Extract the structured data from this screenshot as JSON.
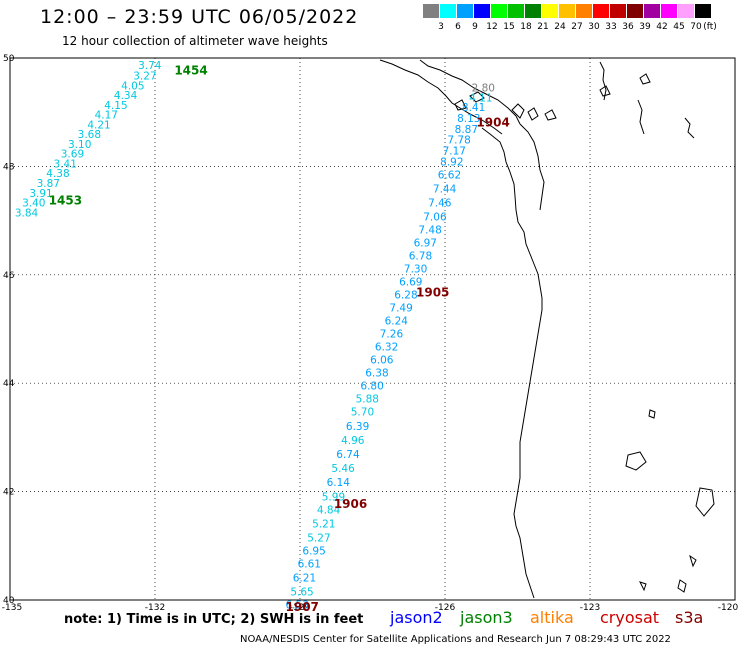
{
  "header": {
    "title": "12:00 – 23:59 UTC 06/05/2022",
    "subtitle": "12 hour collection of altimeter wave heights"
  },
  "legend": {
    "unit": "(ft)",
    "bins": [
      {
        "label": "3",
        "color": "#808080"
      },
      {
        "label": "6",
        "color": "#00ffff"
      },
      {
        "label": "9",
        "color": "#00a0ff"
      },
      {
        "label": "12",
        "color": "#0000ff"
      },
      {
        "label": "15",
        "color": "#00ff00"
      },
      {
        "label": "18",
        "color": "#00c000"
      },
      {
        "label": "21",
        "color": "#008000"
      },
      {
        "label": "24",
        "color": "#ffff00"
      },
      {
        "label": "27",
        "color": "#ffc000"
      },
      {
        "label": "30",
        "color": "#ff8000"
      },
      {
        "label": "33",
        "color": "#ff0000"
      },
      {
        "label": "36",
        "color": "#c00000"
      },
      {
        "label": "39",
        "color": "#800000"
      },
      {
        "label": "42",
        "color": "#a000a0"
      },
      {
        "label": "45",
        "color": "#ff00ff"
      },
      {
        "label": "70",
        "color": "#ffa0ff"
      },
      {
        "label": "",
        "color": "#000000"
      }
    ]
  },
  "axes": {
    "lon_ticks": [
      "-135",
      "-132",
      "-129",
      "-126",
      "-123",
      "-120"
    ],
    "lat_ticks": [
      "50",
      "48",
      "46",
      "44",
      "42",
      "40"
    ],
    "lon_range": [
      -135,
      -120
    ],
    "lat_range": [
      40,
      50
    ]
  },
  "tracks": [
    {
      "mission": "jason3",
      "time_labels": [
        {
          "text": "1454",
          "lon": -131.6,
          "lat": 49.7
        },
        {
          "text": "1453",
          "lon": -134.2,
          "lat": 47.3
        }
      ],
      "points": [
        {
          "lon": -132.35,
          "lat": 49.8,
          "swh": "3.74"
        },
        {
          "lon": -132.45,
          "lat": 49.6,
          "swh": "3.27"
        },
        {
          "lon": -132.7,
          "lat": 49.42,
          "swh": "4.05"
        },
        {
          "lon": -132.85,
          "lat": 49.24,
          "swh": "4.34"
        },
        {
          "lon": -133.05,
          "lat": 49.06,
          "swh": "4.15"
        },
        {
          "lon": -133.25,
          "lat": 48.88,
          "swh": "4.17"
        },
        {
          "lon": -133.4,
          "lat": 48.7,
          "swh": "4.21"
        },
        {
          "lon": -133.6,
          "lat": 48.52,
          "swh": "3.68"
        },
        {
          "lon": -133.8,
          "lat": 48.34,
          "swh": "3.10"
        },
        {
          "lon": -133.95,
          "lat": 48.16,
          "swh": "3.69"
        },
        {
          "lon": -134.1,
          "lat": 47.98,
          "swh": "3.41"
        },
        {
          "lon": -134.25,
          "lat": 47.8,
          "swh": "4.38"
        },
        {
          "lon": -134.45,
          "lat": 47.62,
          "swh": "3.87"
        },
        {
          "lon": -134.6,
          "lat": 47.44,
          "swh": "3.91"
        },
        {
          "lon": -134.75,
          "lat": 47.26,
          "swh": "3.40"
        },
        {
          "lon": -134.9,
          "lat": 47.08,
          "swh": "3.84"
        }
      ]
    },
    {
      "mission": "cryosat",
      "time_labels": [
        {
          "text": "1904",
          "lon": -125.35,
          "lat": 48.74
        },
        {
          "text": "1905",
          "lon": -126.6,
          "lat": 45.6
        },
        {
          "text": "1906",
          "lon": -128.3,
          "lat": 41.7
        },
        {
          "text": "1907",
          "lon": -129.3,
          "lat": 39.8
        }
      ],
      "points": [
        {
          "lon": -125.45,
          "lat": 49.38,
          "swh": "2.80"
        },
        {
          "lon": -125.5,
          "lat": 49.2,
          "swh": "4.11"
        },
        {
          "lon": -125.65,
          "lat": 49.02,
          "swh": "8.41"
        },
        {
          "lon": -125.75,
          "lat": 48.82,
          "swh": "8.13"
        },
        {
          "lon": -125.8,
          "lat": 48.62,
          "swh": "8.87"
        },
        {
          "lon": -125.95,
          "lat": 48.42,
          "swh": "7.78"
        },
        {
          "lon": -126.05,
          "lat": 48.22,
          "swh": "7.17"
        },
        {
          "lon": -126.1,
          "lat": 48.02,
          "swh": "8.92"
        },
        {
          "lon": -126.15,
          "lat": 47.78,
          "swh": "6.62"
        },
        {
          "lon": -126.25,
          "lat": 47.52,
          "swh": "7.44"
        },
        {
          "lon": -126.35,
          "lat": 47.26,
          "swh": "7.46"
        },
        {
          "lon": -126.45,
          "lat": 47.0,
          "swh": "7.06"
        },
        {
          "lon": -126.55,
          "lat": 46.76,
          "swh": "7.48"
        },
        {
          "lon": -126.65,
          "lat": 46.52,
          "swh": "6.97"
        },
        {
          "lon": -126.75,
          "lat": 46.28,
          "swh": "6.78"
        },
        {
          "lon": -126.85,
          "lat": 46.04,
          "swh": "7.30"
        },
        {
          "lon": -126.95,
          "lat": 45.8,
          "swh": "6.69"
        },
        {
          "lon": -127.05,
          "lat": 45.56,
          "swh": "6.28"
        },
        {
          "lon": -127.15,
          "lat": 45.32,
          "swh": "7.49"
        },
        {
          "lon": -127.25,
          "lat": 45.08,
          "swh": "6.24"
        },
        {
          "lon": -127.35,
          "lat": 44.84,
          "swh": "7.26"
        },
        {
          "lon": -127.45,
          "lat": 44.6,
          "swh": "6.32"
        },
        {
          "lon": -127.55,
          "lat": 44.36,
          "swh": "6.06"
        },
        {
          "lon": -127.65,
          "lat": 44.12,
          "swh": "6.38"
        },
        {
          "lon": -127.75,
          "lat": 43.88,
          "swh": "6.80"
        },
        {
          "lon": -127.85,
          "lat": 43.64,
          "swh": "5.88"
        },
        {
          "lon": -127.95,
          "lat": 43.4,
          "swh": "5.70"
        },
        {
          "lon": -128.05,
          "lat": 43.14,
          "swh": "6.39"
        },
        {
          "lon": -128.15,
          "lat": 42.88,
          "swh": "4.96"
        },
        {
          "lon": -128.25,
          "lat": 42.62,
          "swh": "6.74"
        },
        {
          "lon": -128.35,
          "lat": 42.36,
          "swh": "5.46"
        },
        {
          "lon": -128.45,
          "lat": 42.1,
          "swh": "6.14"
        },
        {
          "lon": -128.55,
          "lat": 41.84,
          "swh": "5.99"
        },
        {
          "lon": -128.65,
          "lat": 41.6,
          "swh": "4.84"
        },
        {
          "lon": -128.75,
          "lat": 41.34,
          "swh": "5.21"
        },
        {
          "lon": -128.85,
          "lat": 41.08,
          "swh": "5.27"
        },
        {
          "lon": -128.95,
          "lat": 40.84,
          "swh": "6.95"
        },
        {
          "lon": -129.05,
          "lat": 40.6,
          "swh": "6.61"
        },
        {
          "lon": -129.15,
          "lat": 40.34,
          "swh": "6.21"
        },
        {
          "lon": -129.2,
          "lat": 40.08,
          "swh": "5.65"
        },
        {
          "lon": -129.3,
          "lat": 39.84,
          "swh": "6.53"
        }
      ]
    }
  ],
  "footer": {
    "note": "note:  1) Time is in UTC;  2) SWH is in feet",
    "missions": [
      {
        "name": "jason2",
        "color": "#0000ff"
      },
      {
        "name": "jason3",
        "color": "#008000"
      },
      {
        "name": "altika",
        "color": "#ff8000"
      },
      {
        "name": "cryosat",
        "color": "#cc0000"
      },
      {
        "name": "s3a",
        "color": "#800000"
      }
    ],
    "credit": "NOAA/NESDIS Center for Satellite Applications and Research    Jun  7 08:29:43 UTC 2022"
  }
}
